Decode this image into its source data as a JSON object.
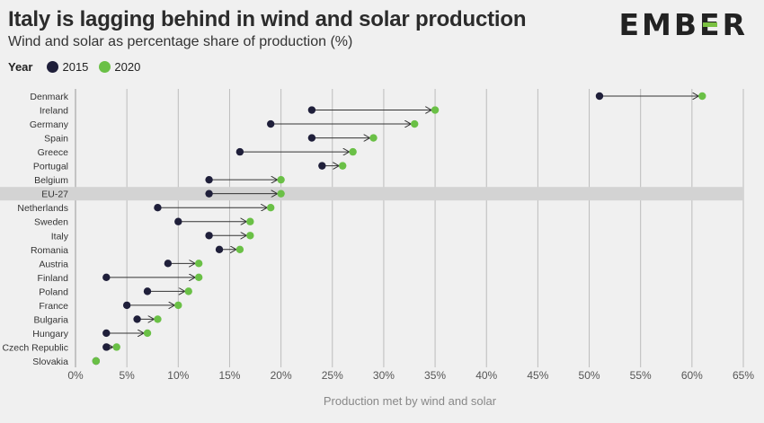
{
  "title": "Italy is lagging behind in wind and solar production",
  "subtitle": "Wind and solar as percentage share of production (%)",
  "brand": "EMBER",
  "legend": {
    "title": "Year",
    "items": [
      {
        "label": "2015",
        "color": "#1f1f3a"
      },
      {
        "label": "2020",
        "color": "#6ac046"
      }
    ]
  },
  "chart_data": {
    "type": "dumbbell",
    "xlabel": "Production met by wind and solar",
    "xlim": [
      0,
      65
    ],
    "x_ticks": [
      0,
      5,
      10,
      15,
      20,
      25,
      30,
      35,
      40,
      45,
      50,
      55,
      60,
      65
    ],
    "x_tick_labels": [
      "0%",
      "5%",
      "10%",
      "15%",
      "20%",
      "25%",
      "30%",
      "35%",
      "40%",
      "45%",
      "50%",
      "55%",
      "60%",
      "65%"
    ],
    "highlight": "EU-27",
    "categories": [
      "Denmark",
      "Ireland",
      "Germany",
      "Spain",
      "Greece",
      "Portugal",
      "Belgium",
      "EU-27",
      "Netherlands",
      "Sweden",
      "Italy",
      "Romania",
      "Austria",
      "Finland",
      "Poland",
      "France",
      "Bulgaria",
      "Hungary",
      "Czech Republic",
      "Slovakia"
    ],
    "series": [
      {
        "name": "2015",
        "values": [
          51,
          23,
          19,
          23,
          16,
          24,
          13,
          13,
          8,
          10,
          13,
          14,
          9,
          3,
          7,
          5,
          6,
          3,
          3,
          2
        ]
      },
      {
        "name": "2020",
        "values": [
          61,
          35,
          33,
          29,
          27,
          26,
          20,
          20,
          19,
          17,
          17,
          16,
          12,
          12,
          11,
          10,
          8,
          7,
          4,
          2
        ]
      }
    ]
  }
}
